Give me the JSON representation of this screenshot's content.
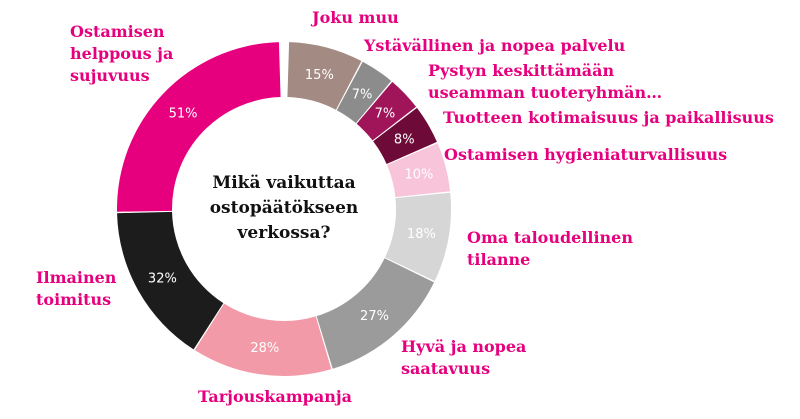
{
  "chart_data": {
    "type": "donut",
    "title": "Mikä vaikuttaa ostopäätökseen verkossa?",
    "title_lines": [
      "Mikä vaikuttaa",
      "ostopäätökseen",
      "verkossa?"
    ],
    "unit": "%",
    "slices": [
      {
        "label_lines": [
          "Joku muu"
        ],
        "value": 15,
        "color": "#a38a83",
        "text_color": "#ffffff"
      },
      {
        "label_lines": [
          "Ystävällinen ja nopea palvelu"
        ],
        "value": 7,
        "color": "#8c8c8c",
        "text_color": "#ffffff"
      },
      {
        "label_lines": [
          "Pystyn keskittämään",
          "useamman tuoteryhmän…"
        ],
        "value": 7,
        "color": "#a0145a",
        "text_color": "#ffffff"
      },
      {
        "label_lines": [
          "Tuotteen kotimaisuus ja paikallisuus"
        ],
        "value": 8,
        "color": "#6e0a38",
        "text_color": "#ffffff"
      },
      {
        "label_lines": [
          "Ostamisen hygieniaturvallisuus"
        ],
        "value": 10,
        "color": "#f7c4da",
        "text_color": "#ffffff"
      },
      {
        "label_lines": [
          "Oma taloudellinen",
          "tilanne"
        ],
        "value": 18,
        "color": "#d6d6d6",
        "text_color": "#ffffff"
      },
      {
        "label_lines": [
          "Hyvä ja nopea",
          "saatavuus"
        ],
        "value": 27,
        "color": "#9b9b9b",
        "text_color": "#ffffff"
      },
      {
        "label_lines": [
          "Tarjouskampanja"
        ],
        "value": 28,
        "color": "#f29aa8",
        "text_color": "#ffffff"
      },
      {
        "label_lines": [
          "Ilmainen",
          "toimitus"
        ],
        "value": 32,
        "color": "#1c1c1c",
        "text_color": "#ffffff"
      },
      {
        "label_lines": [
          "Ostamisen",
          "helppous ja",
          "sujuvuus"
        ],
        "value": 51,
        "color": "#e6007e",
        "text_color": "#ffffff"
      }
    ]
  }
}
